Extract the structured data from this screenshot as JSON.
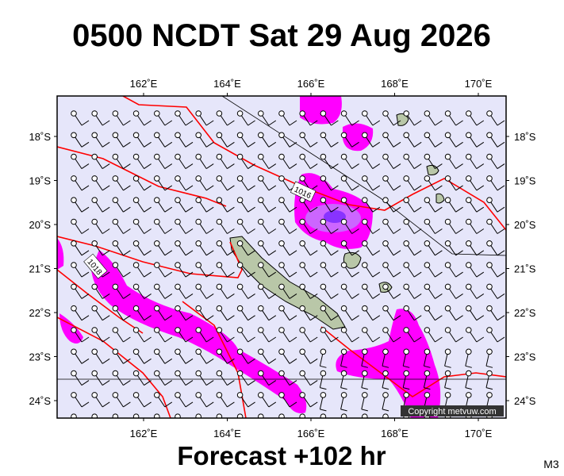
{
  "header": {
    "title": "0500 NCDT Sat 29 Aug 2026"
  },
  "map": {
    "lon_labels": [
      "162˚E",
      "164˚E",
      "166˚E",
      "168˚E",
      "170˚E"
    ],
    "lat_labels": [
      "18˚S",
      "19˚S",
      "20˚S",
      "21˚S",
      "22˚S",
      "23˚S",
      "24˚S"
    ],
    "isobar_labels": [
      "1016",
      "1018"
    ],
    "copyright": "Copyright metvuw.com"
  },
  "footer": {
    "forecast": "Forecast +102 hr",
    "model": "M3"
  }
}
